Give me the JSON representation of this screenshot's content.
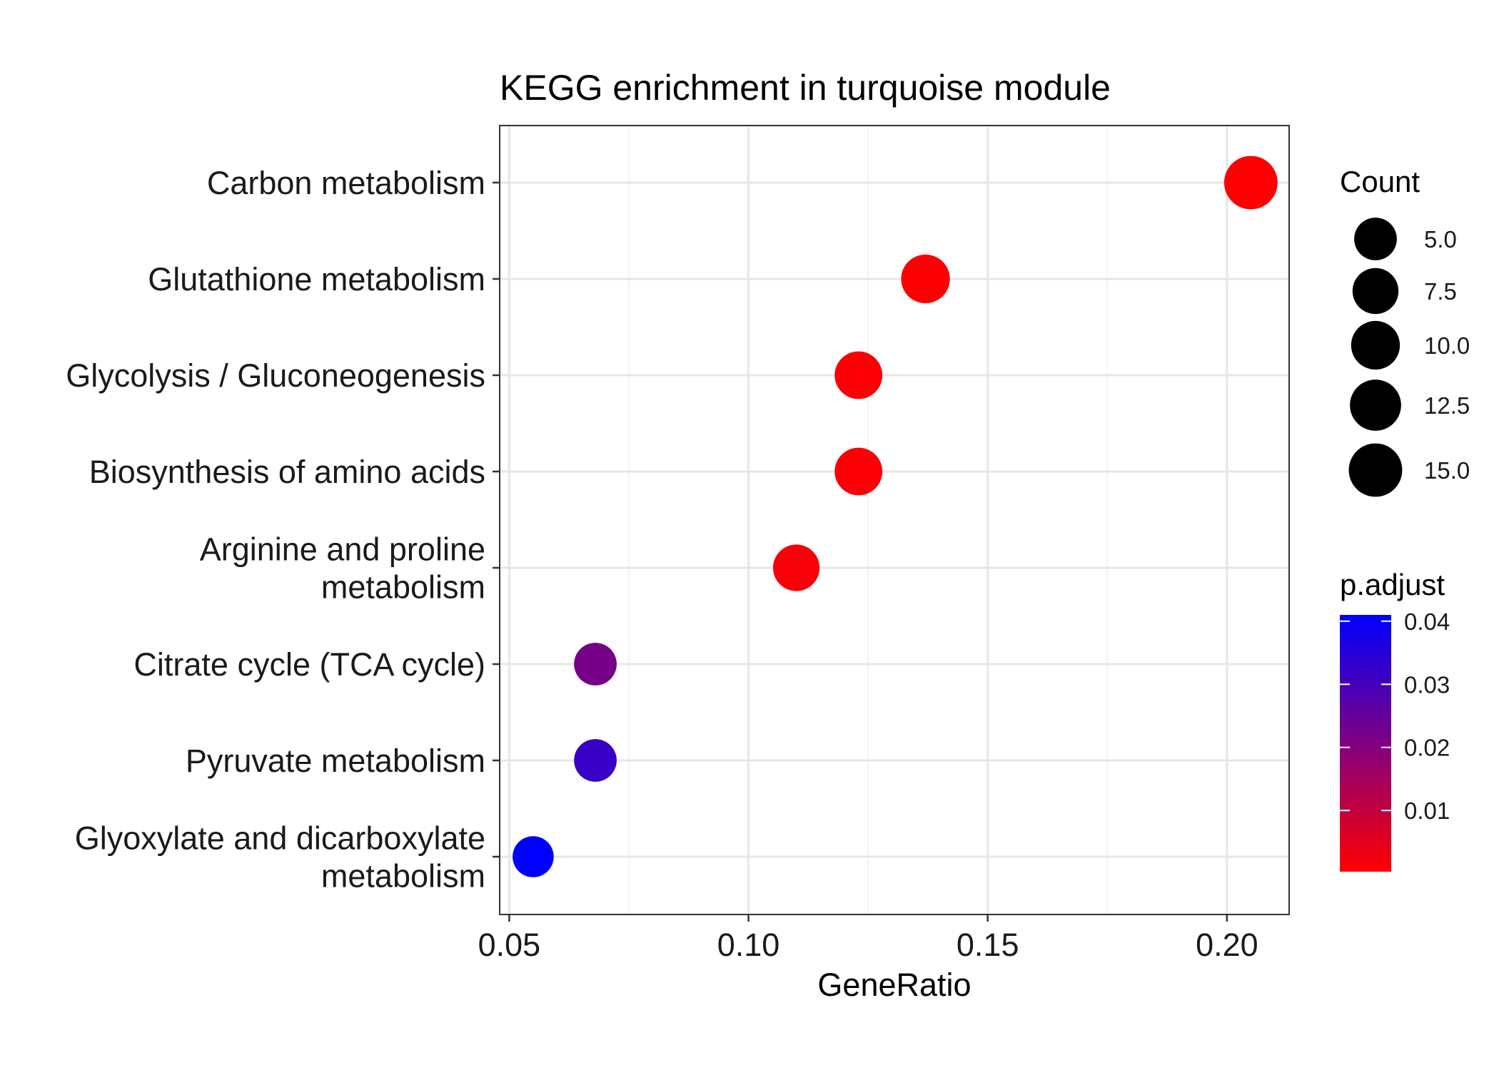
{
  "chart_data": {
    "type": "scatter",
    "title": "KEGG enrichment in turquoise module",
    "xlabel": "GeneRatio",
    "ylabel": "",
    "xlim": [
      0.048,
      0.213
    ],
    "xticks": [
      "0.05",
      "0.10",
      "0.15",
      "0.20"
    ],
    "xtick_values": [
      0.05,
      0.1,
      0.15,
      0.2
    ],
    "grid": true,
    "legend_position": "right",
    "categories": [
      [
        "Carbon metabolism"
      ],
      [
        "Glutathione metabolism"
      ],
      [
        "Glycolysis / Gluconeogenesis"
      ],
      [
        "Biosynthesis of amino acids"
      ],
      [
        "Arginine and proline",
        "metabolism"
      ],
      [
        "Citrate cycle (TCA cycle)"
      ],
      [
        "Pyruvate metabolism"
      ],
      [
        "Glyoxylate and dicarboxylate",
        "metabolism"
      ]
    ],
    "points": [
      {
        "gene_ratio": 0.205,
        "count": 15,
        "p_adjust": 0.0005
      },
      {
        "gene_ratio": 0.137,
        "count": 10,
        "p_adjust": 0.0008
      },
      {
        "gene_ratio": 0.123,
        "count": 9,
        "p_adjust": 0.001
      },
      {
        "gene_ratio": 0.123,
        "count": 9,
        "p_adjust": 0.001
      },
      {
        "gene_ratio": 0.11,
        "count": 8,
        "p_adjust": 0.0015
      },
      {
        "gene_ratio": 0.068,
        "count": 5,
        "p_adjust": 0.022
      },
      {
        "gene_ratio": 0.068,
        "count": 5,
        "p_adjust": 0.032
      },
      {
        "gene_ratio": 0.055,
        "count": 4,
        "p_adjust": 0.041
      }
    ],
    "size_legend": {
      "title": "Count",
      "values": [
        5.0,
        7.5,
        10.0,
        12.5,
        15.0
      ],
      "labels": [
        "5.0",
        "7.5",
        "10.0",
        "12.5",
        "15.0"
      ]
    },
    "color_legend": {
      "title": "p.adjust",
      "labels": [
        "0.04",
        "0.03",
        "0.02",
        "0.01"
      ],
      "values": [
        0.04,
        0.03,
        0.02,
        0.01
      ],
      "range": [
        0.0003,
        0.041
      ],
      "low_color": "#ff0000",
      "high_color": "#0000ff"
    }
  }
}
